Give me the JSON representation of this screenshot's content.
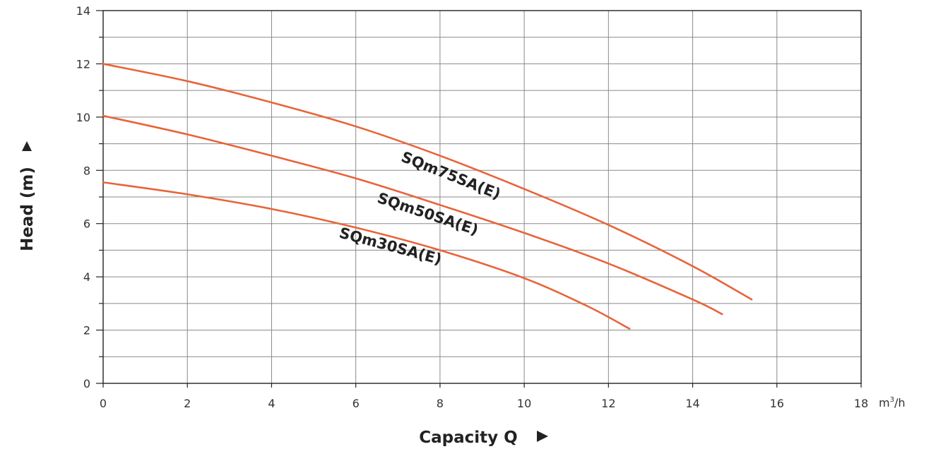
{
  "chart_data": {
    "type": "line",
    "title": "",
    "xlabel": "Capacity Q",
    "ylabel": "Head (m)",
    "x_unit_base": "m",
    "x_unit_sup": "3",
    "x_unit_tail": "/h",
    "xlim": [
      0,
      18
    ],
    "ylim": [
      0,
      14
    ],
    "xticks": [
      "0",
      "2",
      "4",
      "6",
      "8",
      "10",
      "12",
      "14",
      "16",
      "18"
    ],
    "yticks": [
      "0",
      "2",
      "4",
      "6",
      "8",
      "10",
      "12",
      "14"
    ],
    "grid": true,
    "line_color": "#E8643A",
    "series": [
      {
        "name": "SQm75SA(E)",
        "x": [
          0,
          2,
          4,
          6,
          8,
          10,
          12,
          14,
          15.4
        ],
        "y": [
          12.0,
          11.35,
          10.55,
          9.65,
          8.55,
          7.3,
          5.95,
          4.4,
          3.15
        ]
      },
      {
        "name": "SQm50SA(E)",
        "x": [
          0,
          2,
          4,
          6,
          8,
          10,
          12,
          14,
          14.7
        ],
        "y": [
          10.05,
          9.35,
          8.55,
          7.7,
          6.7,
          5.65,
          4.5,
          3.15,
          2.6
        ]
      },
      {
        "name": "SQm30SA(E)",
        "x": [
          0,
          2,
          4,
          6,
          8,
          10,
          11.5,
          12.5
        ],
        "y": [
          7.55,
          7.1,
          6.55,
          5.85,
          5.0,
          3.95,
          2.9,
          2.05
        ]
      }
    ]
  }
}
